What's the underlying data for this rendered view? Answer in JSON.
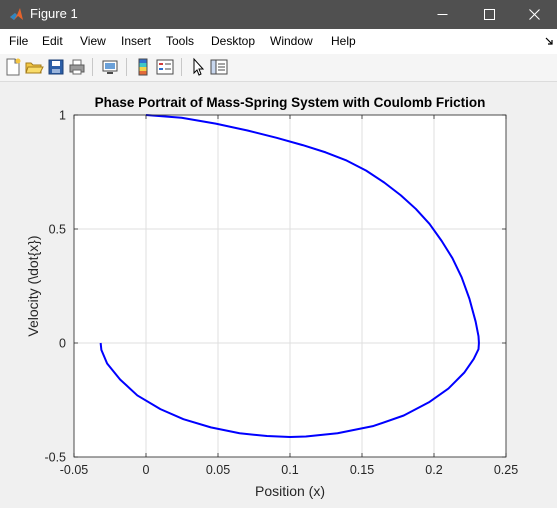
{
  "window": {
    "title": "Figure 1"
  },
  "menu": {
    "items": [
      "File",
      "Edit",
      "View",
      "Insert",
      "Tools",
      "Desktop",
      "Window",
      "Help"
    ]
  },
  "toolbar": {
    "icons": [
      "new-figure-icon",
      "open-file-icon",
      "save-icon",
      "print-icon",
      "link-plot-icon",
      "insert-colorbar-icon",
      "insert-legend-icon",
      "edit-plot-icon",
      "property-inspector-icon"
    ]
  },
  "chart_data": {
    "type": "line",
    "title": "Phase Portrait of Mass-Spring System with Coulomb Friction",
    "xlabel": "Position (x)",
    "ylabel": "Velocity (\\dot{x})",
    "xlim": [
      -0.05,
      0.25
    ],
    "ylim": [
      -0.5,
      1
    ],
    "xticks": [
      -0.05,
      0,
      0.05,
      0.1,
      0.15,
      0.2,
      0.25
    ],
    "xtick_labels": [
      "-0.05",
      "0",
      "0.05",
      "0.1",
      "0.15",
      "0.2",
      "0.25"
    ],
    "yticks": [
      -0.5,
      0,
      0.5,
      1
    ],
    "ytick_labels": [
      "-0.5",
      "0",
      "0.5",
      "1"
    ],
    "grid": true,
    "series": [
      {
        "color": "#0000ff",
        "x": [
          0.0,
          0.0247,
          0.0484,
          0.0705,
          0.0907,
          0.1088,
          0.1248,
          0.1394,
          0.1529,
          0.1654,
          0.1769,
          0.1874,
          0.1969,
          0.2053,
          0.2128,
          0.2192,
          0.2246,
          0.2289,
          0.2309,
          0.2312,
          0.2309,
          0.2276,
          0.221,
          0.21,
          0.1965,
          0.179,
          0.158,
          0.133,
          0.111,
          0.1,
          0.084,
          0.065,
          0.045,
          0.026,
          0.01,
          -0.006,
          -0.018,
          -0.027,
          -0.031,
          -0.0315
        ],
        "y": [
          1.0,
          0.988,
          0.962,
          0.932,
          0.9,
          0.868,
          0.836,
          0.8,
          0.756,
          0.704,
          0.648,
          0.588,
          0.522,
          0.448,
          0.372,
          0.288,
          0.194,
          0.094,
          0.03,
          0.0,
          -0.027,
          -0.07,
          -0.13,
          -0.2,
          -0.26,
          -0.318,
          -0.364,
          -0.396,
          -0.41,
          -0.412,
          -0.408,
          -0.396,
          -0.37,
          -0.334,
          -0.29,
          -0.23,
          -0.16,
          -0.09,
          -0.03,
          0.0
        ]
      }
    ]
  }
}
